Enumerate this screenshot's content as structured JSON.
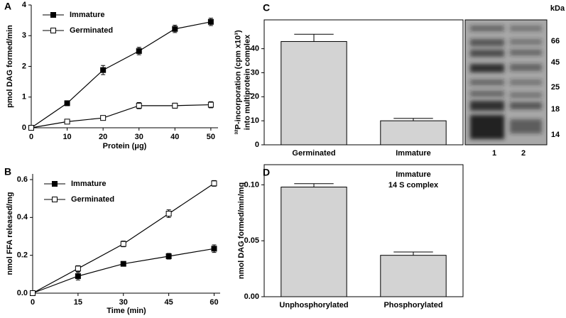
{
  "chart_data": [
    {
      "type": "line",
      "panel_label": "A",
      "x_label": "Protein (μg)",
      "y_label": [
        "pmol DAG formed/min"
      ],
      "x": [
        0,
        10,
        20,
        30,
        40,
        50
      ],
      "xlim": [
        0,
        52
      ],
      "xticks": [
        0,
        10,
        20,
        30,
        40,
        50
      ],
      "ylim": [
        0,
        4
      ],
      "yticks": [
        0,
        1,
        2,
        3,
        4
      ],
      "legend": "upper left",
      "series": [
        {
          "name": "Immature",
          "color": "#000000",
          "marker": "filled-square",
          "values": [
            0,
            0.8,
            1.88,
            2.5,
            3.22,
            3.45
          ],
          "errors": [
            0,
            0.08,
            0.15,
            0.12,
            0.12,
            0.12
          ]
        },
        {
          "name": "Germinated",
          "color": "#000000",
          "marker": "open-square",
          "values": [
            0,
            0.2,
            0.32,
            0.72,
            0.72,
            0.75
          ],
          "errors": [
            0,
            0.04,
            0.04,
            0.1,
            0.08,
            0.1
          ]
        }
      ]
    },
    {
      "type": "line",
      "panel_label": "B",
      "x_label": "Time (min)",
      "y_label": [
        "nmol FFA released/mg"
      ],
      "x": [
        0,
        15,
        30,
        45,
        60
      ],
      "xlim": [
        0,
        62
      ],
      "xticks": [
        0,
        15,
        30,
        45,
        60
      ],
      "ylim": [
        0,
        0.63
      ],
      "yticks": [
        {
          "value": 0,
          "label": "0.0"
        },
        0.2,
        0.4,
        0.6
      ],
      "legend": "upper left",
      "series": [
        {
          "name": "Immature",
          "color": "#000000",
          "marker": "filled-square",
          "values": [
            0,
            0.09,
            0.155,
            0.195,
            0.235
          ],
          "errors": [
            0,
            0.02,
            0.012,
            0.015,
            0.02
          ]
        },
        {
          "name": "Germinated",
          "color": "#000000",
          "marker": "open-square",
          "values": [
            0,
            0.13,
            0.26,
            0.42,
            0.58
          ],
          "errors": [
            0,
            0.015,
            0.015,
            0.02,
            0.015
          ]
        }
      ]
    },
    {
      "type": "bar",
      "panel_label": "C",
      "y_label": [
        "³²P-incorporation (cpm x10³)",
        "into multiprotein complex"
      ],
      "categories": [
        "Germinated",
        "Immature"
      ],
      "values": [
        43,
        10
      ],
      "errors": [
        3,
        1
      ],
      "color": "#d3d3d3",
      "ylim": [
        0,
        52
      ],
      "yticks": [
        0,
        10,
        20,
        30,
        40
      ],
      "gel": {
        "unit_label": "kDa",
        "markers": [
          "66",
          "45",
          "25",
          "18",
          "14"
        ],
        "lanes": [
          "1",
          "2"
        ]
      }
    },
    {
      "type": "bar",
      "panel_label": "D",
      "y_label": [
        "nmol DAG formed/min/mg"
      ],
      "categories": [
        "Unphosphorylated",
        "Phosphorylated"
      ],
      "values": [
        0.098,
        0.037
      ],
      "errors": [
        0.003,
        0.003
      ],
      "color": "#d3d3d3",
      "ylim": [
        0,
        0.118
      ],
      "yticks": [
        {
          "value": 0,
          "label": "0.00"
        },
        {
          "value": 0.05,
          "label": "0.05"
        },
        {
          "value": 0.1,
          "label": "0.10"
        }
      ],
      "annotation": [
        "Immature",
        "14 S complex"
      ]
    }
  ]
}
